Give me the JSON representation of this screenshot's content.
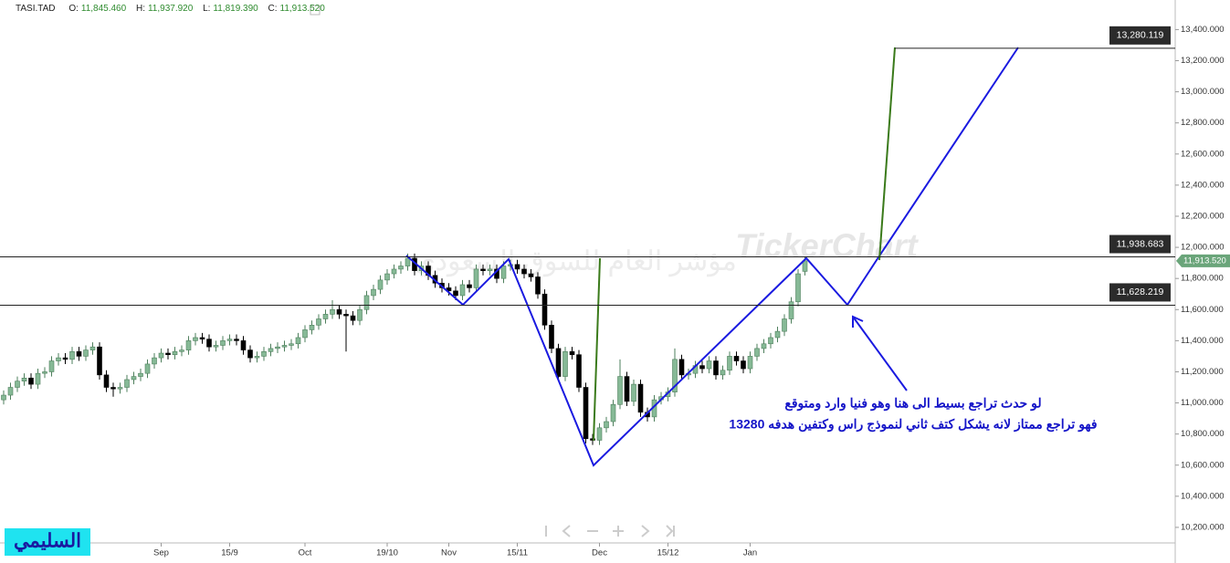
{
  "chart_data": {
    "type": "candlestick",
    "header": {
      "symbol": "TASI.TAD",
      "o_label": "O:",
      "o": "11,845.460",
      "h_label": "H:",
      "h": "11,937.920",
      "l_label": "L:",
      "l": "11,819.390",
      "c_label": "C:",
      "c": "11,913.520"
    },
    "categories": [
      null,
      null,
      null,
      null,
      null,
      null,
      null,
      null,
      null,
      null,
      null,
      null,
      null,
      null,
      null,
      null,
      null,
      null,
      null,
      null,
      null,
      null,
      null,
      "Sep",
      null,
      null,
      null,
      null,
      null,
      null,
      null,
      null,
      null,
      "15/9",
      null,
      null,
      null,
      null,
      null,
      null,
      null,
      null,
      null,
      null,
      "Oct",
      null,
      null,
      null,
      null,
      null,
      null,
      null,
      null,
      null,
      null,
      null,
      "19/10",
      null,
      null,
      null,
      null,
      null,
      null,
      null,
      null,
      "Nov",
      null,
      null,
      null,
      null,
      null,
      null,
      null,
      null,
      null,
      "15/11",
      null,
      null,
      null,
      null,
      null,
      null,
      null,
      null,
      null,
      null,
      null,
      "Dec",
      null,
      null,
      null,
      null,
      null,
      null,
      null,
      null,
      null,
      "15/12",
      null,
      null,
      null,
      null,
      null,
      null,
      null,
      null,
      null,
      null,
      null,
      "Jan",
      null,
      null,
      null,
      null,
      null,
      null,
      null,
      null
    ],
    "open": [
      11020,
      11050,
      11100,
      11140,
      11160,
      11120,
      11190,
      11200,
      11270,
      11290,
      11280,
      11330,
      11300,
      11340,
      11360,
      11180,
      11100,
      11090,
      11100,
      11150,
      11170,
      11190,
      11250,
      11290,
      11320,
      11310,
      11330,
      11340,
      11400,
      11420,
      11410,
      11360,
      11370,
      11400,
      11410,
      11400,
      11340,
      11290,
      11300,
      11330,
      11350,
      11360,
      11370,
      11380,
      11420,
      11470,
      11500,
      11540,
      11570,
      11600,
      11570,
      11560,
      11530,
      11600,
      11690,
      11730,
      11790,
      11830,
      11860,
      11880,
      11930,
      11850,
      11880,
      11820,
      11770,
      11740,
      11720,
      11690,
      11760,
      11740,
      11860,
      11850,
      11860,
      11800,
      11880,
      11890,
      11860,
      11830,
      11810,
      11700,
      11500,
      11350,
      11170,
      11330,
      11310,
      11100,
      10770,
      10760,
      10840,
      10880,
      10990,
      11170,
      11010,
      11120,
      10940,
      10910,
      11020,
      11040,
      11070,
      11280,
      11180,
      11190,
      11240,
      11220,
      11270,
      11180,
      11210,
      11300,
      11270,
      11220,
      11300,
      11350,
      11380,
      11420,
      11460,
      11540,
      11650,
      11845.46
    ],
    "high": [
      11080,
      11130,
      11170,
      11190,
      11190,
      11220,
      11230,
      11300,
      11320,
      11320,
      11360,
      11360,
      11370,
      11390,
      11390,
      11210,
      11130,
      11130,
      11180,
      11200,
      11220,
      11280,
      11320,
      11350,
      11350,
      11360,
      11370,
      11430,
      11450,
      11450,
      11440,
      11400,
      11430,
      11440,
      11440,
      11430,
      11370,
      11330,
      11360,
      11380,
      11390,
      11400,
      11410,
      11450,
      11500,
      11530,
      11570,
      11600,
      11660,
      11630,
      11600,
      11590,
      11630,
      11720,
      11760,
      11820,
      11860,
      11890,
      11910,
      11960,
      11960,
      11910,
      11910,
      11850,
      11800,
      11770,
      11750,
      11790,
      11790,
      11890,
      11890,
      11890,
      11890,
      11910,
      11920,
      11920,
      11890,
      11860,
      11840,
      11730,
      11530,
      11380,
      11360,
      11360,
      11340,
      11130,
      10800,
      10870,
      10910,
      11020,
      11280,
      11200,
      11150,
      11150,
      10970,
      11050,
      11070,
      11100,
      11350,
      11310,
      11220,
      11270,
      11270,
      11300,
      11300,
      11240,
      11330,
      11330,
      11300,
      11330,
      11380,
      11410,
      11450,
      11490,
      11570,
      11680,
      11860,
      11937.92
    ],
    "low": [
      10990,
      11020,
      11070,
      11110,
      11090,
      11090,
      11160,
      11170,
      11240,
      11250,
      11250,
      11270,
      11270,
      11310,
      11150,
      11070,
      11040,
      11060,
      11070,
      11120,
      11140,
      11160,
      11220,
      11260,
      11280,
      11280,
      11300,
      11310,
      11370,
      11380,
      11330,
      11330,
      11340,
      11370,
      11370,
      11310,
      11260,
      11260,
      11270,
      11300,
      11320,
      11330,
      11340,
      11350,
      11390,
      11440,
      11470,
      11510,
      11540,
      11540,
      11330,
      11500,
      11500,
      11570,
      11660,
      11700,
      11760,
      11800,
      11830,
      11850,
      11820,
      11820,
      11790,
      11740,
      11710,
      11690,
      11660,
      11660,
      11710,
      11710,
      11820,
      11820,
      11770,
      11770,
      11850,
      11830,
      11800,
      11780,
      11670,
      11470,
      11320,
      11140,
      11140,
      11280,
      11070,
      10740,
      10730,
      10730,
      10810,
      10850,
      10960,
      10980,
      10980,
      10910,
      10880,
      10880,
      10990,
      11010,
      11040,
      11150,
      11150,
      11160,
      11190,
      11190,
      11150,
      11150,
      11180,
      11240,
      11190,
      11190,
      11270,
      11320,
      11350,
      11390,
      11430,
      11510,
      11620,
      11819.39
    ],
    "close": [
      11050,
      11100,
      11140,
      11160,
      11120,
      11190,
      11200,
      11270,
      11290,
      11280,
      11330,
      11300,
      11340,
      11360,
      11180,
      11100,
      11090,
      11100,
      11150,
      11170,
      11190,
      11250,
      11290,
      11320,
      11310,
      11330,
      11340,
      11400,
      11420,
      11410,
      11360,
      11370,
      11400,
      11410,
      11400,
      11340,
      11290,
      11300,
      11330,
      11350,
      11360,
      11370,
      11380,
      11420,
      11470,
      11500,
      11540,
      11570,
      11600,
      11570,
      11560,
      11530,
      11600,
      11690,
      11730,
      11790,
      11830,
      11860,
      11880,
      11930,
      11850,
      11880,
      11820,
      11770,
      11740,
      11720,
      11690,
      11760,
      11740,
      11860,
      11850,
      11860,
      11800,
      11880,
      11890,
      11860,
      11830,
      11810,
      11700,
      11500,
      11350,
      11170,
      11330,
      11310,
      11100,
      10770,
      10760,
      10840,
      10880,
      10990,
      11170,
      11010,
      11120,
      10940,
      10910,
      11020,
      11040,
      11070,
      11280,
      11180,
      11190,
      11240,
      11220,
      11270,
      11180,
      11210,
      11300,
      11270,
      11220,
      11300,
      11350,
      11380,
      11420,
      11460,
      11540,
      11650,
      11830,
      11913.52
    ],
    "up_color": "#86b996",
    "down_color": "#000000",
    "ylim": [
      10100,
      13590
    ],
    "yticks": [
      {
        "value": 10200,
        "label": "10,200.000"
      },
      {
        "value": 10400,
        "label": "10,400.000"
      },
      {
        "value": 10600,
        "label": "10,600.000"
      },
      {
        "value": 10800,
        "label": "10,800.000"
      },
      {
        "value": 11000,
        "label": "11,000.000"
      },
      {
        "value": 11200,
        "label": "11,200.000"
      },
      {
        "value": 11400,
        "label": "11,400.000"
      },
      {
        "value": 11600,
        "label": "11,600.000"
      },
      {
        "value": 11800,
        "label": "11,800.000"
      },
      {
        "value": 12000,
        "label": "12,000.000"
      },
      {
        "value": 12200,
        "label": "12,200.000"
      },
      {
        "value": 12400,
        "label": "12,400.000"
      },
      {
        "value": 12600,
        "label": "12,600.000"
      },
      {
        "value": 12800,
        "label": "12,800.000"
      },
      {
        "value": 13000,
        "label": "13,000.000"
      },
      {
        "value": 13200,
        "label": "13,200.000"
      },
      {
        "value": 13400,
        "label": "13,400.000"
      }
    ],
    "grid": false,
    "levels": [
      {
        "value": 13280.119,
        "label": "13,280.119"
      },
      {
        "value": 11938.683,
        "label": "11,938.683"
      },
      {
        "value": 11628.219,
        "label": "11,628.219"
      }
    ],
    "annotation": [
      "لو حدث تراجع بسيط الى هنا وهو فنيا وارد ومتوقع",
      "فهو تراجع ممتاز لانه يشكل كتف ثاني لنموذج راس وكتفين هدفه 13280"
    ],
    "watermark": "TickerChart",
    "watermark_ar": "مؤشر العام للسوق السعودي",
    "author": "السليمي"
  }
}
